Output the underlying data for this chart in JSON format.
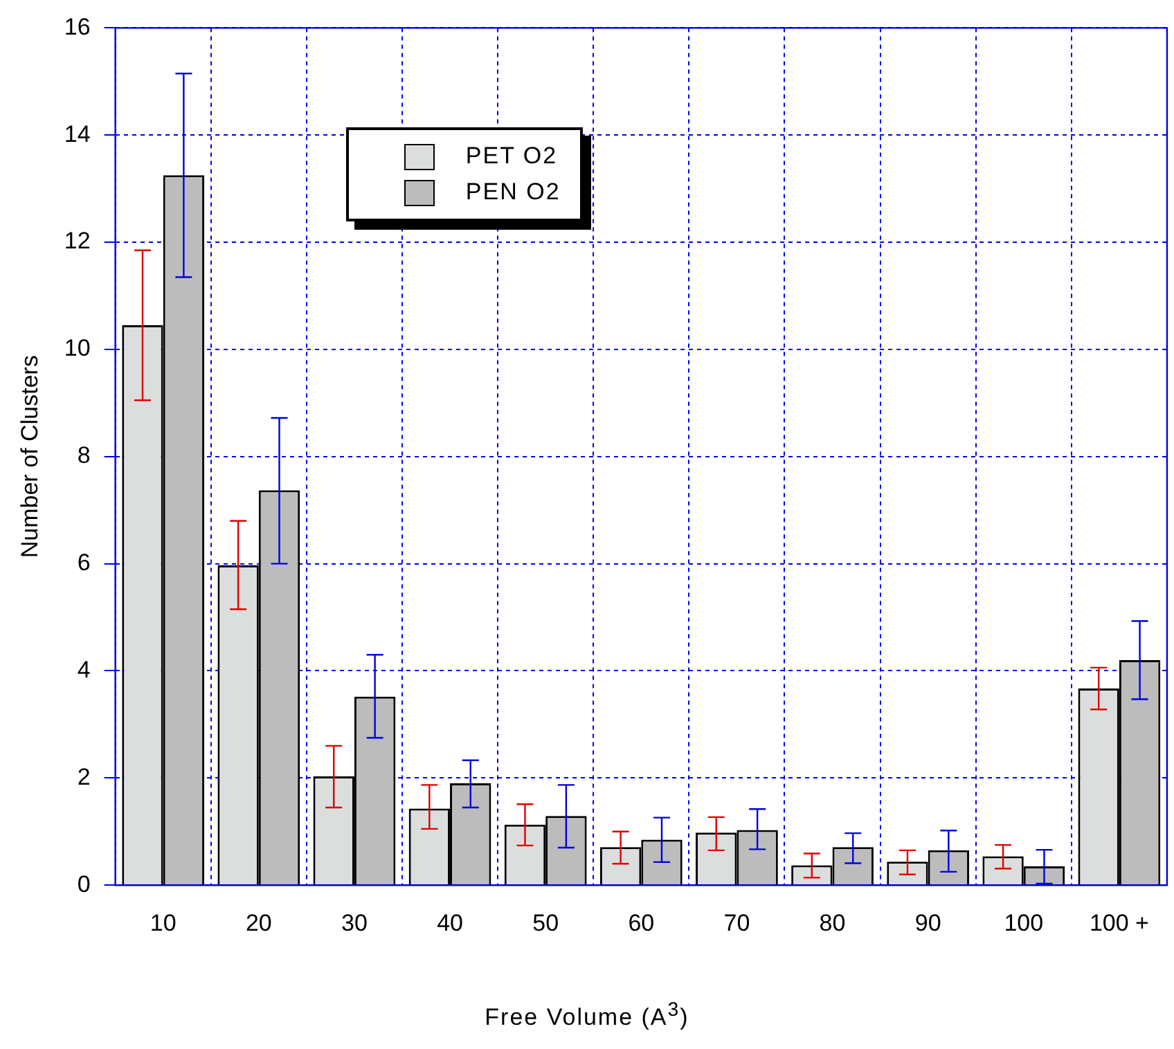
{
  "chart_data": {
    "type": "bar",
    "xlabel": "Free Volume (A$^{3}$)",
    "ylabel": "Number of Clusters",
    "categories": [
      "10",
      "20",
      "30",
      "40",
      "50",
      "60",
      "70",
      "80",
      "90",
      "100",
      "100 +"
    ],
    "series": [
      {
        "name": "PET O2",
        "color": "#dcdedd",
        "values": [
          10.45,
          5.97,
          2.03,
          1.43,
          1.13,
          0.71,
          0.98,
          0.37,
          0.44,
          0.54,
          3.67
        ],
        "errors": [
          [
            9.05,
            11.85
          ],
          [
            5.15,
            6.8
          ],
          [
            1.45,
            2.6
          ],
          [
            1.05,
            1.87
          ],
          [
            0.74,
            1.51
          ],
          [
            0.4,
            1.0
          ],
          [
            0.65,
            1.27
          ],
          [
            0.14,
            0.59
          ],
          [
            0.2,
            0.65
          ],
          [
            0.31,
            0.75
          ],
          [
            3.28,
            4.06
          ]
        ]
      },
      {
        "name": "PEN O2",
        "color": "#bcbcbc",
        "values": [
          13.25,
          7.37,
          3.52,
          1.9,
          1.29,
          0.85,
          1.03,
          0.71,
          0.65,
          0.35,
          4.2
        ],
        "errors": [
          [
            11.35,
            15.15
          ],
          [
            6.0,
            8.72
          ],
          [
            2.75,
            4.3
          ],
          [
            1.45,
            2.33
          ],
          [
            0.7,
            1.87
          ],
          [
            0.43,
            1.26
          ],
          [
            0.67,
            1.42
          ],
          [
            0.41,
            0.97
          ],
          [
            0.25,
            1.02
          ],
          [
            0.03,
            0.66
          ],
          [
            3.47,
            4.93
          ]
        ]
      }
    ],
    "ylim": [
      0,
      16
    ],
    "yticks": [
      0,
      2,
      4,
      6,
      8,
      10,
      12,
      14,
      16
    ],
    "grid": true,
    "legend": "top"
  }
}
